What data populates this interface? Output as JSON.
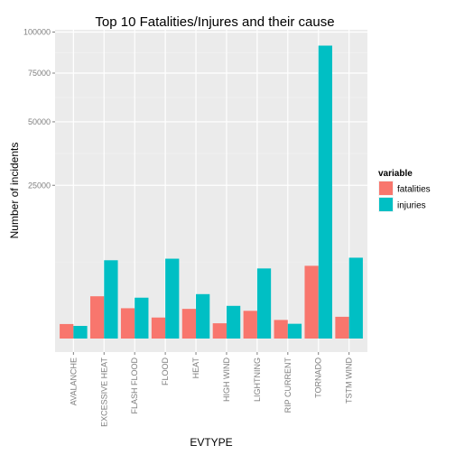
{
  "chart_data": {
    "type": "bar",
    "title": "Top 10 Fatalities/Injures and their cause",
    "xlabel": "EVTYPE",
    "ylabel": "Number of incidents",
    "y_scale": "sqrt",
    "ylim": [
      0,
      100000
    ],
    "yticks": [
      25000,
      50000,
      75000,
      100000
    ],
    "ytick_labels": [
      "25000",
      "50000",
      "75000",
      "100000"
    ],
    "grid": true,
    "legend_position": "right",
    "legend_title": "variable",
    "categories": [
      "AVALANCHE",
      "EXCESSIVE HEAT",
      "FLASH FLOOD",
      "FLOOD",
      "HEAT",
      "HIGH WIND",
      "LIGHTNING",
      "RIP CURRENT",
      "TORNADO",
      "TSTM WIND"
    ],
    "series": [
      {
        "name": "fatalities",
        "color": "#F8766D",
        "values": [
          224,
          1903,
          978,
          470,
          937,
          248,
          817,
          368,
          5633,
          504
        ]
      },
      {
        "name": "injuries",
        "color": "#00BFC4",
        "values": [
          170,
          6525,
          1777,
          6789,
          2100,
          1137,
          5230,
          232,
          91346,
          6957
        ]
      }
    ]
  }
}
